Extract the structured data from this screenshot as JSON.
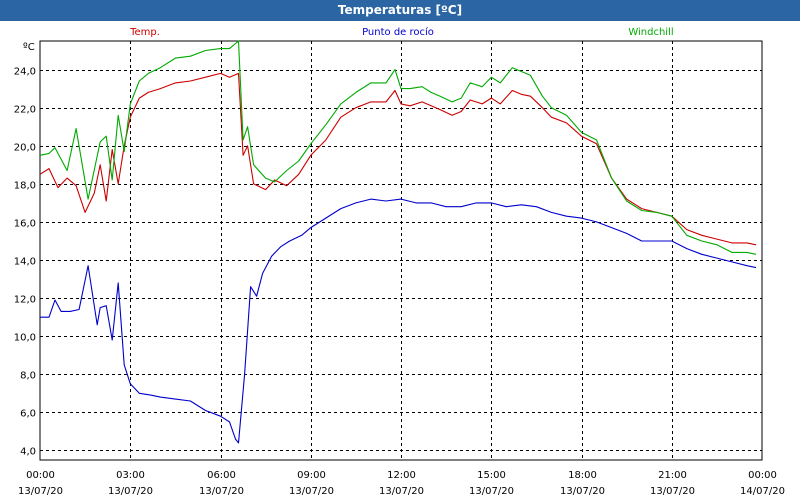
{
  "window": {
    "title": "Temperaturas [ºC]"
  },
  "colors": {
    "titlebar": "#2b65a3",
    "temp": "#cc0000",
    "dew": "#0000cc",
    "windchill": "#00aa00",
    "grid": "#000000"
  },
  "chart_data": {
    "type": "line",
    "title": "Temperaturas [ºC]",
    "ylabel": "ºC",
    "xlabel": "",
    "xlim": [
      0,
      24
    ],
    "ylim": [
      3.5,
      25.5
    ],
    "grid": true,
    "legend_placement": "top",
    "yticks": [
      "4,0",
      "6,0",
      "8,0",
      "10,0",
      "12,0",
      "14,0",
      "16,0",
      "18,0",
      "20,0",
      "22,0",
      "24,0"
    ],
    "ytick_values": [
      4,
      6,
      8,
      10,
      12,
      14,
      16,
      18,
      20,
      22,
      24
    ],
    "xticks": [
      {
        "value": 0,
        "time": "00:00",
        "date": "13/07/20"
      },
      {
        "value": 3,
        "time": "03:00",
        "date": "13/07/20"
      },
      {
        "value": 6,
        "time": "06:00",
        "date": "13/07/20"
      },
      {
        "value": 9,
        "time": "09:00",
        "date": "13/07/20"
      },
      {
        "value": 12,
        "time": "12:00",
        "date": "13/07/20"
      },
      {
        "value": 15,
        "time": "15:00",
        "date": "13/07/20"
      },
      {
        "value": 18,
        "time": "18:00",
        "date": "13/07/20"
      },
      {
        "value": 21,
        "time": "21:00",
        "date": "13/07/20"
      },
      {
        "value": 24,
        "time": "00:00",
        "date": "14/07/20"
      }
    ],
    "series": [
      {
        "name": "Temp.",
        "color": "#cc0000",
        "points": [
          [
            0,
            18.5
          ],
          [
            0.3,
            18.8
          ],
          [
            0.6,
            17.8
          ],
          [
            0.9,
            18.3
          ],
          [
            1.2,
            17.9
          ],
          [
            1.5,
            16.5
          ],
          [
            1.8,
            17.5
          ],
          [
            2.0,
            19.0
          ],
          [
            2.2,
            17.1
          ],
          [
            2.4,
            19.8
          ],
          [
            2.6,
            18.0
          ],
          [
            2.8,
            20.0
          ],
          [
            3.0,
            21.5
          ],
          [
            3.3,
            22.5
          ],
          [
            3.6,
            22.8
          ],
          [
            4.0,
            23.0
          ],
          [
            4.5,
            23.3
          ],
          [
            5.0,
            23.4
          ],
          [
            5.5,
            23.6
          ],
          [
            6.0,
            23.8
          ],
          [
            6.3,
            23.6
          ],
          [
            6.6,
            23.8
          ],
          [
            6.75,
            19.5
          ],
          [
            6.9,
            20.0
          ],
          [
            7.1,
            18.0
          ],
          [
            7.5,
            17.7
          ],
          [
            7.8,
            18.2
          ],
          [
            8.2,
            17.9
          ],
          [
            8.6,
            18.5
          ],
          [
            9.0,
            19.5
          ],
          [
            9.5,
            20.3
          ],
          [
            10.0,
            21.5
          ],
          [
            10.5,
            22.0
          ],
          [
            11.0,
            22.3
          ],
          [
            11.5,
            22.3
          ],
          [
            11.8,
            22.9
          ],
          [
            12.0,
            22.2
          ],
          [
            12.3,
            22.1
          ],
          [
            12.7,
            22.3
          ],
          [
            13.0,
            22.1
          ],
          [
            13.3,
            21.9
          ],
          [
            13.7,
            21.6
          ],
          [
            14.0,
            21.8
          ],
          [
            14.3,
            22.4
          ],
          [
            14.7,
            22.2
          ],
          [
            15.0,
            22.5
          ],
          [
            15.3,
            22.2
          ],
          [
            15.7,
            22.9
          ],
          [
            16.0,
            22.7
          ],
          [
            16.3,
            22.6
          ],
          [
            16.7,
            22.0
          ],
          [
            17.0,
            21.5
          ],
          [
            17.5,
            21.2
          ],
          [
            18.0,
            20.5
          ],
          [
            18.5,
            20.1
          ],
          [
            19.0,
            18.3
          ],
          [
            19.5,
            17.2
          ],
          [
            20.0,
            16.7
          ],
          [
            20.5,
            16.5
          ],
          [
            21.0,
            16.3
          ],
          [
            21.5,
            15.6
          ],
          [
            22.0,
            15.3
          ],
          [
            22.5,
            15.1
          ],
          [
            23.0,
            14.9
          ],
          [
            23.5,
            14.9
          ],
          [
            23.8,
            14.8
          ]
        ]
      },
      {
        "name": "Punto de rocío",
        "color": "#0000cc",
        "points": [
          [
            0,
            11.0
          ],
          [
            0.3,
            11.0
          ],
          [
            0.5,
            11.9
          ],
          [
            0.7,
            11.3
          ],
          [
            1.0,
            11.3
          ],
          [
            1.3,
            11.4
          ],
          [
            1.6,
            13.7
          ],
          [
            1.9,
            10.6
          ],
          [
            2.0,
            11.5
          ],
          [
            2.2,
            11.6
          ],
          [
            2.4,
            9.8
          ],
          [
            2.6,
            12.8
          ],
          [
            2.8,
            8.5
          ],
          [
            3.0,
            7.5
          ],
          [
            3.3,
            7.0
          ],
          [
            3.7,
            6.9
          ],
          [
            4.0,
            6.8
          ],
          [
            4.5,
            6.7
          ],
          [
            5.0,
            6.6
          ],
          [
            5.5,
            6.1
          ],
          [
            6.0,
            5.8
          ],
          [
            6.3,
            5.5
          ],
          [
            6.5,
            4.6
          ],
          [
            6.6,
            4.4
          ],
          [
            6.8,
            8.0
          ],
          [
            7.0,
            12.6
          ],
          [
            7.2,
            12.1
          ],
          [
            7.4,
            13.3
          ],
          [
            7.7,
            14.2
          ],
          [
            8.0,
            14.7
          ],
          [
            8.3,
            15.0
          ],
          [
            8.7,
            15.3
          ],
          [
            9.0,
            15.7
          ],
          [
            9.5,
            16.2
          ],
          [
            10.0,
            16.7
          ],
          [
            10.5,
            17.0
          ],
          [
            11.0,
            17.2
          ],
          [
            11.5,
            17.1
          ],
          [
            12.0,
            17.2
          ],
          [
            12.5,
            17.0
          ],
          [
            13.0,
            17.0
          ],
          [
            13.5,
            16.8
          ],
          [
            14.0,
            16.8
          ],
          [
            14.5,
            17.0
          ],
          [
            15.0,
            17.0
          ],
          [
            15.5,
            16.8
          ],
          [
            16.0,
            16.9
          ],
          [
            16.5,
            16.8
          ],
          [
            17.0,
            16.5
          ],
          [
            17.5,
            16.3
          ],
          [
            18.0,
            16.2
          ],
          [
            18.5,
            16.0
          ],
          [
            19.0,
            15.7
          ],
          [
            19.5,
            15.4
          ],
          [
            20.0,
            15.0
          ],
          [
            20.5,
            15.0
          ],
          [
            21.0,
            15.0
          ],
          [
            21.5,
            14.6
          ],
          [
            22.0,
            14.3
          ],
          [
            22.5,
            14.1
          ],
          [
            23.0,
            13.9
          ],
          [
            23.5,
            13.7
          ],
          [
            23.8,
            13.6
          ]
        ]
      },
      {
        "name": "Windchill",
        "color": "#00aa00",
        "points": [
          [
            0,
            19.5
          ],
          [
            0.3,
            19.6
          ],
          [
            0.5,
            19.9
          ],
          [
            0.9,
            18.7
          ],
          [
            1.2,
            20.9
          ],
          [
            1.6,
            17.2
          ],
          [
            2.0,
            20.2
          ],
          [
            2.2,
            20.5
          ],
          [
            2.4,
            18.2
          ],
          [
            2.6,
            21.6
          ],
          [
            2.8,
            19.7
          ],
          [
            3.0,
            22.2
          ],
          [
            3.3,
            23.4
          ],
          [
            3.6,
            23.8
          ],
          [
            4.0,
            24.1
          ],
          [
            4.5,
            24.6
          ],
          [
            5.0,
            24.7
          ],
          [
            5.5,
            25.0
          ],
          [
            6.0,
            25.1
          ],
          [
            6.3,
            25.1
          ],
          [
            6.6,
            25.5
          ],
          [
            6.75,
            20.3
          ],
          [
            6.9,
            21.0
          ],
          [
            7.1,
            19.0
          ],
          [
            7.5,
            18.3
          ],
          [
            7.8,
            18.1
          ],
          [
            8.2,
            18.7
          ],
          [
            8.6,
            19.2
          ],
          [
            9.0,
            20.1
          ],
          [
            9.5,
            21.1
          ],
          [
            10.0,
            22.2
          ],
          [
            10.5,
            22.8
          ],
          [
            11.0,
            23.3
          ],
          [
            11.5,
            23.3
          ],
          [
            11.8,
            24.0
          ],
          [
            12.0,
            23.0
          ],
          [
            12.3,
            23.0
          ],
          [
            12.7,
            23.1
          ],
          [
            13.0,
            22.8
          ],
          [
            13.3,
            22.6
          ],
          [
            13.7,
            22.3
          ],
          [
            14.0,
            22.5
          ],
          [
            14.3,
            23.3
          ],
          [
            14.7,
            23.1
          ],
          [
            15.0,
            23.6
          ],
          [
            15.3,
            23.3
          ],
          [
            15.7,
            24.1
          ],
          [
            16.0,
            23.9
          ],
          [
            16.3,
            23.7
          ],
          [
            16.7,
            22.6
          ],
          [
            17.0,
            22.0
          ],
          [
            17.5,
            21.6
          ],
          [
            18.0,
            20.7
          ],
          [
            18.5,
            20.3
          ],
          [
            19.0,
            18.3
          ],
          [
            19.5,
            17.1
          ],
          [
            20.0,
            16.6
          ],
          [
            20.5,
            16.5
          ],
          [
            21.0,
            16.3
          ],
          [
            21.5,
            15.3
          ],
          [
            22.0,
            15.0
          ],
          [
            22.5,
            14.8
          ],
          [
            23.0,
            14.4
          ],
          [
            23.5,
            14.4
          ],
          [
            23.8,
            14.3
          ]
        ]
      }
    ]
  }
}
